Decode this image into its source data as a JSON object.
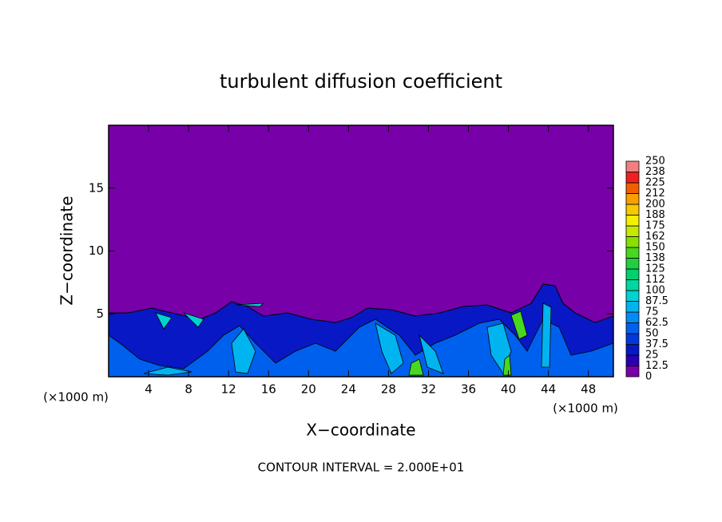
{
  "chart_data": {
    "type": "contour",
    "title": "turbulent diffusion coefficient",
    "xlabel": "X−coordinate",
    "ylabel": "Z−coordinate",
    "unit_label": "(×1000 m)",
    "footer": "CONTOUR INTERVAL = 2.000E+01",
    "xlim": [
      0,
      50.5
    ],
    "ylim": [
      0,
      20
    ],
    "xticks": [
      4,
      8,
      12,
      16,
      20,
      24,
      28,
      32,
      36,
      40,
      44,
      48
    ],
    "yticks": [
      5,
      10,
      15
    ],
    "colorbar": {
      "levels": [
        0,
        12.5,
        25,
        37.5,
        50,
        62.5,
        75,
        87.5,
        100,
        {
          "value": 112.5,
          "label": "112"
        },
        125,
        {
          "value": 137.5,
          "label": "138"
        },
        150,
        {
          "value": 162.5,
          "label": "162"
        },
        175,
        {
          "value": 187.5,
          "label": "188"
        },
        200,
        {
          "value": 212.5,
          "label": "212"
        },
        225,
        {
          "value": 237.5,
          "label": "238"
        },
        250
      ],
      "colors": [
        "#7800a8",
        "#2a00b0",
        "#0818c4",
        "#0038dc",
        "#0060ee",
        "#008cf8",
        "#00b4f0",
        "#00d2d2",
        "#00d8a0",
        "#00d070",
        "#20d040",
        "#48d820",
        "#88e000",
        "#c4e800",
        "#f4f000",
        "#f8c800",
        "#f8a000",
        "#f06000",
        "#f02020",
        "#f08080"
      ]
    }
  }
}
